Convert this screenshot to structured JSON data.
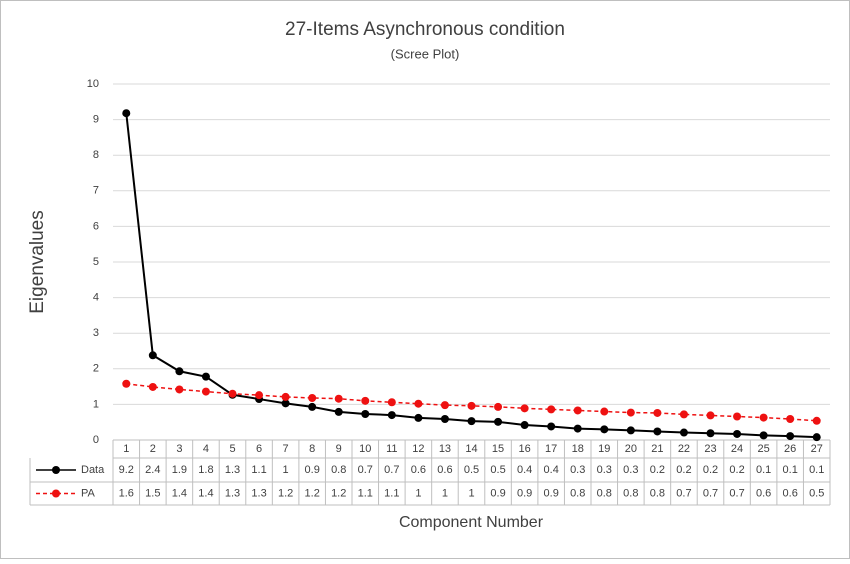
{
  "chart_data": {
    "type": "line",
    "title": "27-Items Asynchronous condition",
    "subtitle": "(Scree Plot)",
    "y_label": "Eigenvalues",
    "x_label": "Component Number",
    "categories": [
      "1",
      "2",
      "3",
      "4",
      "5",
      "6",
      "7",
      "8",
      "9",
      "10",
      "11",
      "12",
      "13",
      "14",
      "15",
      "16",
      "17",
      "18",
      "19",
      "20",
      "21",
      "22",
      "23",
      "24",
      "25",
      "26",
      "27"
    ],
    "ylim": [
      0,
      10
    ],
    "yticks": [
      0,
      1,
      2,
      3,
      4,
      5,
      6,
      7,
      8,
      9,
      10
    ],
    "grid": true,
    "series": [
      {
        "name": "Data",
        "color": "#000000",
        "dash": false,
        "values": [
          9.18,
          2.38,
          1.93,
          1.78,
          1.27,
          1.15,
          1.03,
          0.93,
          0.79,
          0.73,
          0.7,
          0.62,
          0.59,
          0.53,
          0.51,
          0.42,
          0.38,
          0.32,
          0.3,
          0.27,
          0.24,
          0.21,
          0.19,
          0.17,
          0.13,
          0.11,
          0.08
        ],
        "value_labels": [
          "9.2",
          "2.4",
          "1.9",
          "1.8",
          "1.3",
          "1.1",
          "1",
          "0.9",
          "0.8",
          "0.7",
          "0.7",
          "0.6",
          "0.6",
          "0.5",
          "0.5",
          "0.4",
          "0.4",
          "0.3",
          "0.3",
          "0.3",
          "0.2",
          "0.2",
          "0.2",
          "0.2",
          "0.1",
          "0.1",
          "0.1"
        ]
      },
      {
        "name": "PA",
        "color": "#ee1111",
        "dash": true,
        "values": [
          1.58,
          1.49,
          1.42,
          1.36,
          1.3,
          1.26,
          1.21,
          1.18,
          1.16,
          1.1,
          1.06,
          1.02,
          0.98,
          0.96,
          0.93,
          0.89,
          0.86,
          0.83,
          0.8,
          0.77,
          0.76,
          0.72,
          0.69,
          0.66,
          0.63,
          0.59,
          0.54
        ],
        "value_labels": [
          "1.6",
          "1.5",
          "1.4",
          "1.4",
          "1.3",
          "1.3",
          "1.2",
          "1.2",
          "1.2",
          "1.1",
          "1.1",
          "1",
          "1",
          "1",
          "0.9",
          "0.9",
          "0.9",
          "0.8",
          "0.8",
          "0.8",
          "0.8",
          "0.7",
          "0.7",
          "0.7",
          "0.6",
          "0.6",
          "0.5"
        ]
      }
    ]
  }
}
